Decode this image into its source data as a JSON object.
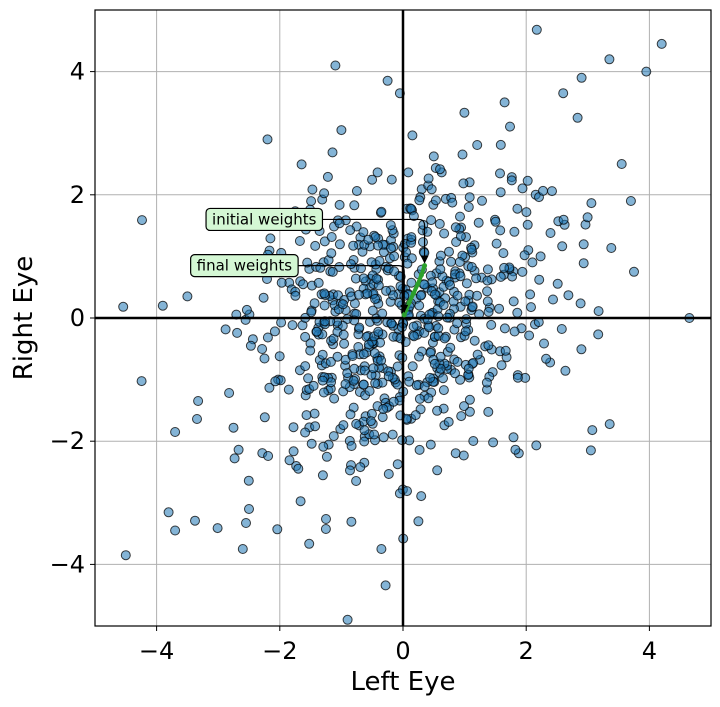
{
  "chart_data": {
    "type": "scatter",
    "title": "",
    "xlabel": "Left Eye",
    "ylabel": "Right Eye",
    "xlim": [
      -5,
      5
    ],
    "ylim": [
      -5,
      5
    ],
    "xticks": [
      -4,
      -2,
      0,
      2,
      4
    ],
    "yticks": [
      -4,
      -2,
      0,
      2,
      4
    ],
    "xtick_labels": [
      "−4",
      "−2",
      "0",
      "2",
      "4"
    ],
    "ytick_labels": [
      "−4",
      "−2",
      "0",
      "2",
      "4"
    ],
    "grid": true,
    "origin_axes": true,
    "colors": {
      "marker_fill": "#1f77b4",
      "marker_edge": "#000000",
      "trajectory": "#2ca02c",
      "annotation_box": "#d4f7d4"
    },
    "points": {
      "marker": "circle",
      "seed": 7,
      "n_random": 720,
      "sigma": 1.3,
      "correlation": 0.25,
      "explicit": [
        [
          4.2,
          4.45
        ],
        [
          3.95,
          4.0
        ],
        [
          3.35,
          4.2
        ],
        [
          2.9,
          3.9
        ],
        [
          2.6,
          3.65
        ],
        [
          -0.25,
          3.85
        ],
        [
          -0.05,
          3.65
        ],
        [
          -2.2,
          2.9
        ],
        [
          4.65,
          0.0
        ],
        [
          -4.5,
          -3.85
        ],
        [
          -3.7,
          -3.45
        ],
        [
          -0.9,
          -4.9
        ],
        [
          -0.35,
          -3.75
        ],
        [
          -2.6,
          -3.75
        ],
        [
          -2.5,
          -3.1
        ],
        [
          3.7,
          1.9
        ],
        [
          3.55,
          2.5
        ],
        [
          3.75,
          0.75
        ],
        [
          3.05,
          -2.15
        ],
        [
          -3.9,
          0.2
        ],
        [
          -3.5,
          0.35
        ],
        [
          -3.7,
          -1.85
        ],
        [
          0.25,
          -3.3
        ],
        [
          1.65,
          3.5
        ],
        [
          -1.0,
          3.05
        ]
      ]
    },
    "trajectory": {
      "color": "#2ca02c",
      "x": [
        0.35,
        0.3,
        0.24,
        0.17,
        0.1,
        0.05,
        0.02
      ],
      "y": [
        0.85,
        0.7,
        0.55,
        0.4,
        0.25,
        0.13,
        0.05
      ]
    },
    "annotations": [
      {
        "text": "initial weights",
        "x": 0.35,
        "y": 0.85,
        "text_x": -3.1,
        "text_y": 1.6
      },
      {
        "text": "final weights",
        "x": 0.02,
        "y": 0.05,
        "text_x": -3.35,
        "text_y": 0.85
      }
    ]
  }
}
